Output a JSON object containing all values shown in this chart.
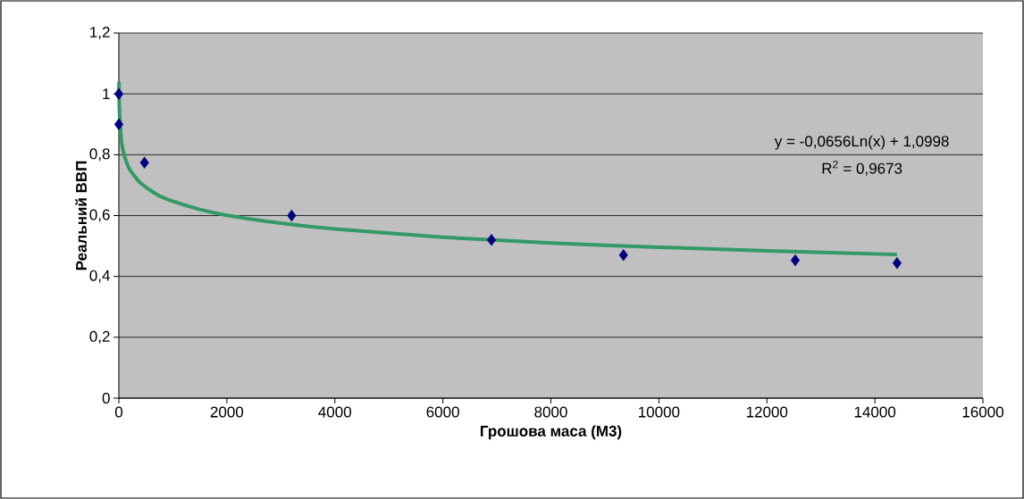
{
  "chart_data": {
    "type": "scatter",
    "xlabel": "Грошова маса (М3)",
    "ylabel": "Реальний ВВП",
    "x": [
      0,
      0,
      475,
      3200,
      6900,
      9344,
      12525,
      14410
    ],
    "series": [
      {
        "color": "#000080",
        "marker": "diamond",
        "values": [
          1.0,
          0.9,
          0.774,
          0.6,
          0.52,
          0.47,
          0.453,
          0.444
        ]
      },
      {
        "type": "line",
        "color": "#339966",
        "line_style": "solid",
        "x": [
          2.5,
          10,
          50,
          100,
          200,
          400,
          700,
          1000,
          1500,
          2000,
          3000,
          4000,
          6000,
          8000,
          10000,
          12000,
          14410
        ],
        "values": [
          1.04,
          0.949,
          0.843,
          0.798,
          0.752,
          0.707,
          0.67,
          0.647,
          0.62,
          0.601,
          0.575,
          0.556,
          0.529,
          0.51,
          0.496,
          0.484,
          0.472
        ]
      }
    ],
    "annotations": [
      "y = -0,0656Ln(x) + 1,0998",
      "R$^{2}$ = 0,9673"
    ],
    "xlim": [
      0,
      16000
    ],
    "xticks": [
      0,
      2000,
      4000,
      6000,
      8000,
      10000,
      12000,
      14000,
      16000
    ],
    "ylim": [
      0,
      1.2
    ],
    "yticks": [
      0,
      {
        "value": 0.2,
        "label": "0,2"
      },
      {
        "value": 0.4,
        "label": "0,4"
      },
      {
        "value": 0.6,
        "label": "0,6"
      },
      {
        "value": 0.8,
        "label": "0,8"
      },
      1,
      {
        "value": 1.2,
        "label": "1,2"
      }
    ],
    "grid": "y"
  }
}
